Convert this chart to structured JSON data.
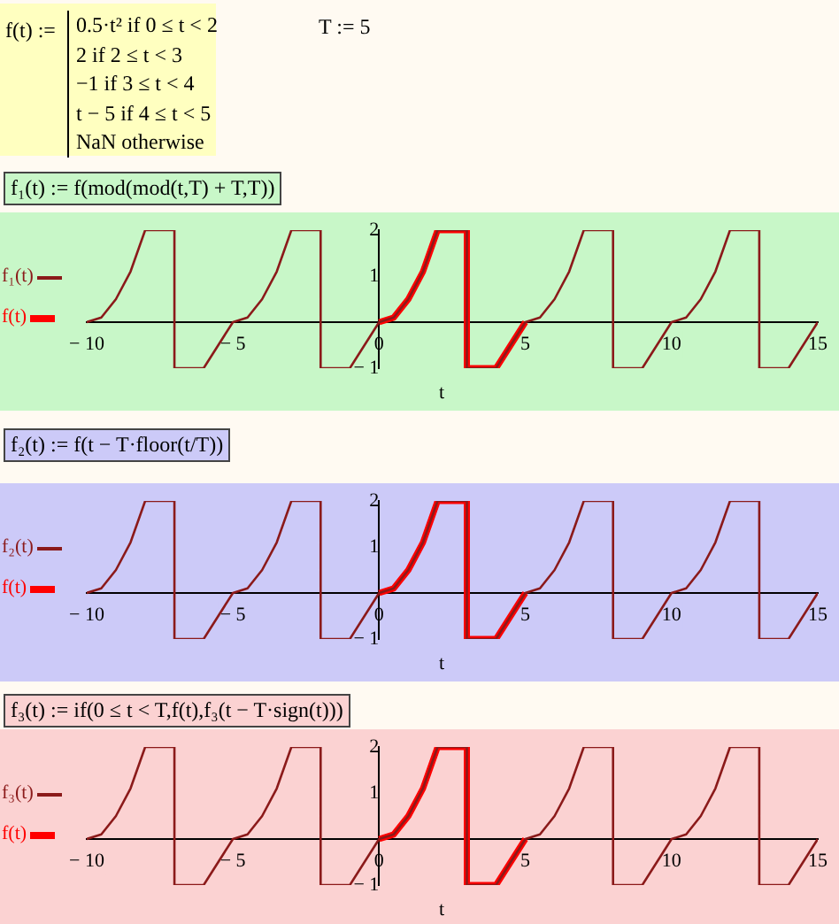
{
  "chart_data": [
    {
      "type": "line",
      "annotations": [
        "f(t) :=",
        "0.5·t² if 0 ≤ t < 2",
        "2 if 2 ≤ t < 3",
        "−1 if 3 ≤ t < 4",
        "t − 5 if 4 ≤ t < 5",
        "NaN otherwise",
        "T := 5",
        "f₁(t) := f(mod(mod(t,T) + T,T))"
      ],
      "xlabel": "t",
      "xlim": [
        -10,
        15
      ],
      "xticks": [
        -10,
        -5,
        0,
        5,
        10,
        15
      ],
      "ylim": [
        -1,
        2
      ],
      "yticks": [
        -1,
        1,
        2
      ],
      "legend": "left",
      "grid": false,
      "marker": "none",
      "line_style": "solid",
      "series": [
        {
          "name": "f₁(t)",
          "color": "#8b1a1a",
          "x": [
            -10,
            -9.5,
            -9,
            -8.5,
            -8,
            -7,
            -7,
            -6,
            -5,
            -4.5,
            -4,
            -3.5,
            -3,
            -2,
            -2,
            -1,
            0,
            0.5,
            1,
            1.5,
            2,
            3,
            3,
            4,
            5,
            5.5,
            6,
            6.5,
            7,
            8,
            8,
            9,
            10,
            10.5,
            11,
            11.5,
            12,
            13,
            13,
            14,
            15
          ],
          "values": [
            0,
            0.1,
            0.5,
            1.1,
            2,
            2,
            -1,
            -1,
            0,
            0.1,
            0.5,
            1.1,
            2,
            2,
            -1,
            -1,
            0,
            0.1,
            0.5,
            1.1,
            2,
            2,
            -1,
            -1,
            0,
            0.1,
            0.5,
            1.1,
            2,
            2,
            -1,
            -1,
            0,
            0.1,
            0.5,
            1.1,
            2,
            2,
            -1,
            -1,
            0
          ]
        },
        {
          "name": "f(t)",
          "color": "#ff0000",
          "x": [
            0,
            0.5,
            1,
            1.5,
            2,
            3,
            3,
            4,
            5
          ],
          "values": [
            0,
            0.1,
            0.5,
            1.1,
            2,
            2,
            -1,
            -1,
            0
          ]
        }
      ]
    },
    {
      "type": "line",
      "annotations": [
        "f₂(t) := f(t − T·floor(t/T))"
      ],
      "xlabel": "t",
      "xlim": [
        -10,
        15
      ],
      "xticks": [
        -10,
        -5,
        0,
        5,
        10,
        15
      ],
      "ylim": [
        -1,
        2
      ],
      "yticks": [
        -1,
        1,
        2
      ],
      "legend": "left",
      "grid": false,
      "marker": "none",
      "line_style": "solid",
      "series": [
        {
          "name": "f₂(t)",
          "color": "#8b1a1a",
          "x": [
            -10,
            -9.5,
            -9,
            -8.5,
            -8,
            -7,
            -7,
            -6,
            -5,
            -4.5,
            -4,
            -3.5,
            -3,
            -2,
            -2,
            -1,
            0,
            0.5,
            1,
            1.5,
            2,
            3,
            3,
            4,
            5,
            5.5,
            6,
            6.5,
            7,
            8,
            8,
            9,
            10,
            10.5,
            11,
            11.5,
            12,
            13,
            13,
            14,
            15
          ],
          "values": [
            0,
            0.1,
            0.5,
            1.1,
            2,
            2,
            -1,
            -1,
            0,
            0.1,
            0.5,
            1.1,
            2,
            2,
            -1,
            -1,
            0,
            0.1,
            0.5,
            1.1,
            2,
            2,
            -1,
            -1,
            0,
            0.1,
            0.5,
            1.1,
            2,
            2,
            -1,
            -1,
            0,
            0.1,
            0.5,
            1.1,
            2,
            2,
            -1,
            -1,
            0
          ]
        },
        {
          "name": "f(t)",
          "color": "#ff0000",
          "x": [
            0,
            0.5,
            1,
            1.5,
            2,
            3,
            3,
            4,
            5
          ],
          "values": [
            0,
            0.1,
            0.5,
            1.1,
            2,
            2,
            -1,
            -1,
            0
          ]
        }
      ]
    },
    {
      "type": "line",
      "annotations": [
        "f₃(t) := if(0 ≤ t < T,f(t),f₃(t − T·sign(t)))"
      ],
      "xlabel": "t",
      "xlim": [
        -10,
        15
      ],
      "xticks": [
        -10,
        -5,
        0,
        5,
        10,
        15
      ],
      "ylim": [
        -1,
        2
      ],
      "yticks": [
        -1,
        1,
        2
      ],
      "legend": "left",
      "grid": false,
      "marker": "none",
      "line_style": "solid",
      "series": [
        {
          "name": "f₃(t)",
          "color": "#8b1a1a",
          "x": [
            -10,
            -9.5,
            -9,
            -8.5,
            -8,
            -7,
            -7,
            -6,
            -5,
            -4.5,
            -4,
            -3.5,
            -3,
            -2,
            -2,
            -1,
            0,
            0.5,
            1,
            1.5,
            2,
            3,
            3,
            4,
            5,
            5.5,
            6,
            6.5,
            7,
            8,
            8,
            9,
            10,
            10.5,
            11,
            11.5,
            12,
            13,
            13,
            14,
            15
          ],
          "values": [
            0,
            0.1,
            0.5,
            1.1,
            2,
            2,
            -1,
            -1,
            0,
            0.1,
            0.5,
            1.1,
            2,
            2,
            -1,
            -1,
            0,
            0.1,
            0.5,
            1.1,
            2,
            2,
            -1,
            -1,
            0,
            0.1,
            0.5,
            1.1,
            2,
            2,
            -1,
            -1,
            0,
            0.1,
            0.5,
            1.1,
            2,
            2,
            -1,
            -1,
            0
          ]
        },
        {
          "name": "f(t)",
          "color": "#ff0000",
          "x": [
            0,
            0.5,
            1,
            1.5,
            2,
            3,
            3,
            4,
            5
          ],
          "values": [
            0,
            0.1,
            0.5,
            1.1,
            2,
            2,
            -1,
            -1,
            0
          ]
        }
      ]
    }
  ]
}
